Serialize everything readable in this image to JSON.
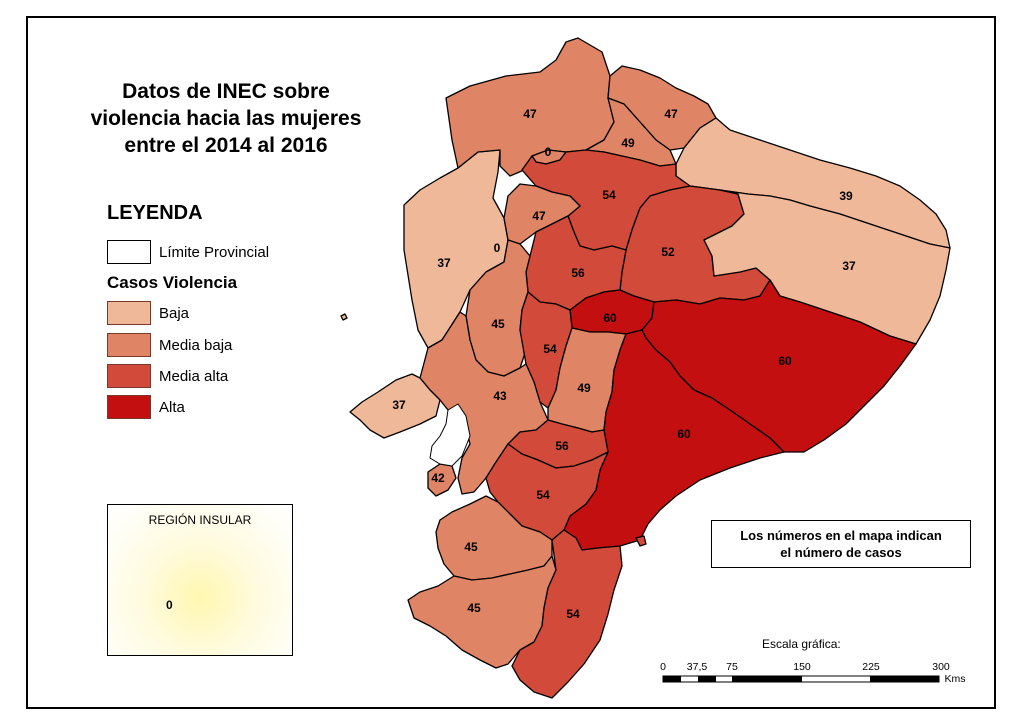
{
  "title_lines": [
    "Datos de INEC sobre",
    "violencia hacia las mujeres",
    "entre el 2014 al 2016"
  ],
  "legend": {
    "title": "LEYENDA",
    "boundary_label": "Límite Provincial",
    "cases_title": "Casos Violencia",
    "classes": [
      {
        "label": "Baja",
        "color": "#efb899"
      },
      {
        "label": "Media baja",
        "color": "#e08466"
      },
      {
        "label": "Media alta",
        "color": "#d24a3a"
      },
      {
        "label": "Alta",
        "color": "#c30f0f"
      }
    ]
  },
  "inset": {
    "title": "REGIÓN INSULAR",
    "value": "0"
  },
  "note": {
    "line1": "Los números en el mapa indican",
    "line2": "el número de casos"
  },
  "scale": {
    "title": "Escala gráfica:",
    "ticks": [
      "0",
      "37,5",
      "75",
      "150",
      "225",
      "300"
    ],
    "unit": "Kms"
  },
  "provinces": [
    {
      "value": "47",
      "class": "Media baja"
    },
    {
      "value": "47",
      "class": "Media baja"
    },
    {
      "value": "49",
      "class": "Media baja"
    },
    {
      "value": "0",
      "class": "Media baja"
    },
    {
      "value": "39",
      "class": "Baja"
    },
    {
      "value": "54",
      "class": "Media alta"
    },
    {
      "value": "47",
      "class": "Media baja"
    },
    {
      "value": "37",
      "class": "Baja"
    },
    {
      "value": "0",
      "class": "Media baja"
    },
    {
      "value": "56",
      "class": "Media alta"
    },
    {
      "value": "52",
      "class": "Media alta"
    },
    {
      "value": "37",
      "class": "Baja"
    },
    {
      "value": "60",
      "class": "Alta"
    },
    {
      "value": "45",
      "class": "Media baja"
    },
    {
      "value": "54",
      "class": "Media alta"
    },
    {
      "value": "60",
      "class": "Alta"
    },
    {
      "value": "49",
      "class": "Media baja"
    },
    {
      "value": "43",
      "class": "Media baja"
    },
    {
      "value": "37",
      "class": "Baja"
    },
    {
      "value": "60",
      "class": "Alta"
    },
    {
      "value": "56",
      "class": "Media alta"
    },
    {
      "value": "42",
      "class": "Media baja"
    },
    {
      "value": "54",
      "class": "Media alta"
    },
    {
      "value": "45",
      "class": "Media baja"
    },
    {
      "value": "45",
      "class": "Media baja"
    },
    {
      "value": "54",
      "class": "Media alta"
    }
  ]
}
